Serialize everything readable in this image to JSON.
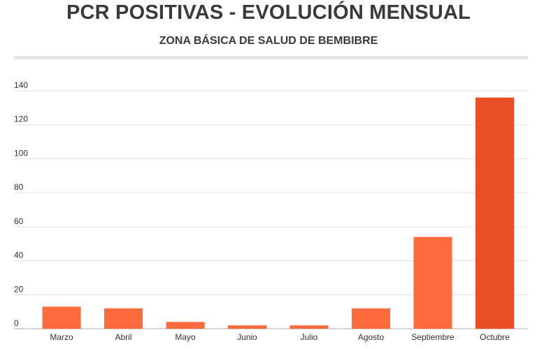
{
  "header": {
    "title": "PCR POSITIVAS - EVOLUCIÓN MENSUAL",
    "subtitle": "ZONA BÁSICA DE SALUD DE BEMBIBRE"
  },
  "chart_data": {
    "type": "bar",
    "title": "PCR POSITIVAS - EVOLUCIÓN MENSUAL",
    "subtitle": "ZONA BÁSICA DE SALUD DE BEMBIBRE",
    "categories": [
      "Marzo",
      "Abril",
      "Mayo",
      "Junio",
      "Julio",
      "Agosto",
      "Septiembre",
      "Octubre"
    ],
    "values": [
      13,
      12,
      4,
      2,
      2,
      12,
      54,
      136
    ],
    "colors": [
      "#ff6b3d",
      "#ff6b3d",
      "#ff6b3d",
      "#ff6b3d",
      "#ff6b3d",
      "#ff6b3d",
      "#ff6b3d",
      "#e94e24"
    ],
    "xlabel": "",
    "ylabel": "",
    "ylim": [
      0,
      140
    ],
    "yticks": [
      0,
      20,
      40,
      60,
      80,
      100,
      120,
      140
    ],
    "grid": true,
    "legend": "none"
  }
}
